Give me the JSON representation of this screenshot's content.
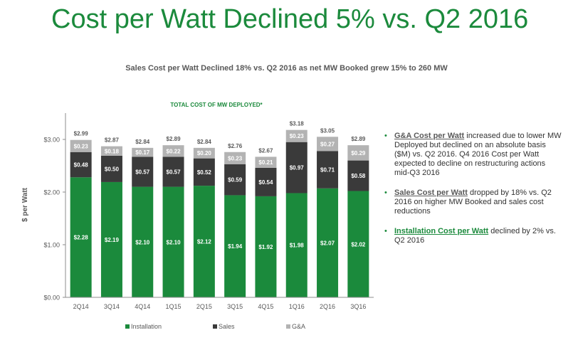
{
  "title": "Cost per Watt Declined 5% vs. Q2 2016",
  "subtitle": "Sales Cost per Watt Declined 18% vs. Q2 2016 as net MW Booked grew 15% to 260 MW",
  "chart_data": {
    "type": "bar",
    "stacked": true,
    "title": "TOTAL COST OF MW DEPLOYED*",
    "ylabel": "$ per Watt",
    "xlabel": "",
    "ylim": [
      0,
      3.5
    ],
    "yticks": [
      "$0.00",
      "$1.00",
      "$2.00",
      "$3.00"
    ],
    "ytick_values": [
      0,
      1,
      2,
      3
    ],
    "categories": [
      "2Q14",
      "3Q14",
      "4Q14",
      "1Q15",
      "2Q15",
      "3Q15",
      "4Q15",
      "1Q16",
      "2Q16",
      "3Q16"
    ],
    "series": [
      {
        "name": "Installation",
        "color": "#1b8a3c",
        "values": [
          2.28,
          2.19,
          2.1,
          2.1,
          2.12,
          1.94,
          1.92,
          1.98,
          2.07,
          2.02
        ],
        "labels": [
          "$2.28",
          "$2.19",
          "$2.10",
          "$2.10",
          "$2.12",
          "$1.94",
          "$1.92",
          "$1.98",
          "$2.07",
          "$2.02"
        ]
      },
      {
        "name": "Sales",
        "color": "#3a3a3a",
        "values": [
          0.48,
          0.5,
          0.57,
          0.57,
          0.52,
          0.59,
          0.54,
          0.97,
          0.71,
          0.58
        ],
        "labels": [
          "$0.48",
          "$0.50",
          "$0.57",
          "$0.57",
          "$0.52",
          "$0.59",
          "$0.54",
          "$0.97",
          "$0.71",
          "$0.58"
        ]
      },
      {
        "name": "G&A",
        "color": "#b3b3b3",
        "values": [
          0.23,
          0.18,
          0.17,
          0.22,
          0.2,
          0.23,
          0.21,
          0.23,
          0.27,
          0.29
        ],
        "labels": [
          "$0.23",
          "$0.18",
          "$0.17",
          "$0.22",
          "$0.20",
          "$0.23",
          "$0.21",
          "$0.23",
          "$0.27",
          "$0.29"
        ]
      }
    ],
    "totals": [
      2.99,
      2.87,
      2.84,
      2.89,
      2.84,
      2.76,
      2.67,
      3.18,
      3.05,
      2.89
    ],
    "total_labels": [
      "$2.99",
      "$2.87",
      "$2.84",
      "$2.89",
      "$2.84",
      "$2.76",
      "$2.67",
      "$3.18",
      "$3.05",
      "$2.89"
    ],
    "legend_position": "bottom"
  },
  "bullets": [
    {
      "lead": "G&A Cost per Watt",
      "text": " increased due to lower MW Deployed but declined on an absolute basis ($M) vs. Q2 2016. Q4 2016 Cost per Watt expected to decline on restructuring actions mid-Q3 2016"
    },
    {
      "lead": "Sales Cost per Watt",
      "text": " dropped by 18% vs. Q2 2016 on higher MW Booked and sales cost reductions"
    },
    {
      "lead": "Installation Cost per Watt",
      "text": " declined by 2% vs. Q2 2016"
    }
  ],
  "colors": {
    "accent": "#1b8a3c",
    "sales": "#3a3a3a",
    "ga": "#b3b3b3"
  }
}
